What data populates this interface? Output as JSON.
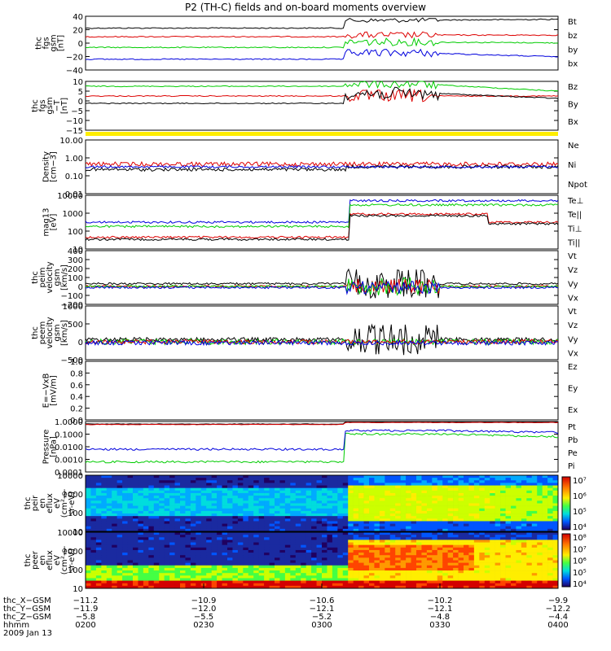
{
  "title": "P2 (TH-C) fields and on-board moments overview",
  "panels": [
    {
      "id": "fgs-mag",
      "ylabel": [
        "thc",
        "fgs",
        "gsm",
        "[nT]"
      ],
      "yticks": [
        "40",
        "20",
        "0",
        "−20",
        "−40"
      ],
      "ylim": [
        -40,
        40
      ],
      "legend": [
        {
          "label": "Bt",
          "color": "#000000"
        },
        {
          "label": "bz",
          "color": "#dd0000"
        },
        {
          "label": "by",
          "color": "#00cc00"
        },
        {
          "label": "bx",
          "color": "#0000dd"
        }
      ]
    },
    {
      "id": "fgs-detrended",
      "ylabel": [
        "thc",
        "fgs",
        "gsm",
        "−T",
        "[nT]"
      ],
      "yticks": [
        "10",
        "5",
        "0",
        "−5",
        "−10",
        "−15"
      ],
      "ylim": [
        -17,
        12
      ],
      "legend": [
        {
          "label": "Bz",
          "color": "#dd0000"
        },
        {
          "label": "By",
          "color": "#00cc00"
        },
        {
          "label": "Bx",
          "color": "#000000"
        }
      ]
    },
    {
      "id": "density",
      "ylabel": [
        "Density",
        "[cm−3]"
      ],
      "yticks": [
        "10.00",
        "1.00",
        "0.10",
        "0.01"
      ],
      "log": true,
      "legend": [
        {
          "label": "Ne",
          "color": "#dd0000"
        },
        {
          "label": "Ni",
          "color": "#000000"
        },
        {
          "label": "Npot",
          "color": "#0000dd"
        }
      ]
    },
    {
      "id": "temperature",
      "ylabel": [
        "mag13",
        "[eV]"
      ],
      "yticks": [
        "10000",
        "1000",
        "100",
        "10"
      ],
      "log": true,
      "legend": [
        {
          "label": "Te⊥",
          "color": "#dd0000"
        },
        {
          "label": "Te||",
          "color": "#000000"
        },
        {
          "label": "Ti⊥",
          "color": "#dd0000"
        },
        {
          "label": "Ti||",
          "color": "#00cc00"
        }
      ]
    },
    {
      "id": "peim-velocity",
      "ylabel": [
        "thc",
        "peim",
        "velocity",
        "gsm",
        "[km/s]"
      ],
      "yticks": [
        "400",
        "300",
        "200",
        "100",
        "0",
        "−100",
        "−200"
      ],
      "ylim": [
        -200,
        400
      ],
      "legend": [
        {
          "label": "Vt",
          "color": "#000000"
        },
        {
          "label": "Vz",
          "color": "#dd0000"
        },
        {
          "label": "Vy",
          "color": "#00cc00"
        },
        {
          "label": "Vx",
          "color": "#0000dd"
        }
      ]
    },
    {
      "id": "peem-velocity",
      "ylabel": [
        "thc",
        "peem",
        "velocity",
        "gsm",
        "[km/s]"
      ],
      "yticks": [
        "1000",
        "500",
        "0",
        "−500"
      ],
      "ylim": [
        -700,
        1200
      ],
      "legend": [
        {
          "label": "Vt",
          "color": "#000000"
        },
        {
          "label": "Vz",
          "color": "#dd0000"
        },
        {
          "label": "Vy",
          "color": "#00cc00"
        },
        {
          "label": "Vx",
          "color": "#0000dd"
        }
      ]
    },
    {
      "id": "exb",
      "ylabel": [
        "E=−VxB",
        "[mV/m]"
      ],
      "yticks": [
        "1.0",
        "0.8",
        "0.6",
        "0.4",
        "0.2",
        "0.0"
      ],
      "ylim": [
        0,
        1
      ],
      "legend": [
        {
          "label": "Ez",
          "color": "#dd0000"
        },
        {
          "label": "Ey",
          "color": "#00cc00"
        },
        {
          "label": "Ex",
          "color": "#0000dd"
        }
      ]
    },
    {
      "id": "pressure",
      "ylabel": [
        "Pressure",
        "[nPa]"
      ],
      "yticks": [
        "1.0000",
        "0.1000",
        "0.0100",
        "0.0010",
        "0.0001"
      ],
      "log": true,
      "legend": [
        {
          "label": "Pt",
          "color": "#000000"
        },
        {
          "label": "Pb",
          "color": "#dd0000"
        },
        {
          "label": "Pe",
          "color": "#00cc00"
        },
        {
          "label": "Pi",
          "color": "#0000dd"
        }
      ]
    },
    {
      "id": "peir-eflux",
      "ylabel": [
        "thc",
        "peir",
        "en",
        "eflux",
        "eV",
        "(cm²-s-",
        "sr-eV)"
      ],
      "yticks": [
        "10000",
        "1000",
        "100",
        "10"
      ],
      "colorbar": [
        "10⁷",
        "10⁶",
        "10⁵",
        "10⁴"
      ]
    },
    {
      "id": "peer-eflux",
      "ylabel": [
        "thc",
        "peer",
        "en",
        "eflux",
        "eV",
        "(cm²-s-",
        "sr-eV)"
      ],
      "yticks": [
        "10000",
        "1000",
        "100",
        "10"
      ],
      "colorbar": [
        "10⁸",
        "10⁷",
        "10⁶",
        "10⁵",
        "10⁴"
      ]
    }
  ],
  "xaxis": {
    "rows": [
      {
        "label": "thc_X−GSM",
        "values": [
          "−11.2",
          "−10.9",
          "−10.6",
          "−10.2",
          "−9.9"
        ]
      },
      {
        "label": "thc_Y−GSM",
        "values": [
          "−11.9",
          "−12.0",
          "−12.1",
          "−12.1",
          "−12.2"
        ]
      },
      {
        "label": "thc_Z−GSM",
        "values": [
          "−5.8",
          "−5.5",
          "−5.2",
          "−4.8",
          "−4.4"
        ]
      },
      {
        "label": "hhmm",
        "values": [
          "0200",
          "0230",
          "0300",
          "0330",
          "0400"
        ]
      }
    ],
    "date": "2009 Jan 13"
  }
}
